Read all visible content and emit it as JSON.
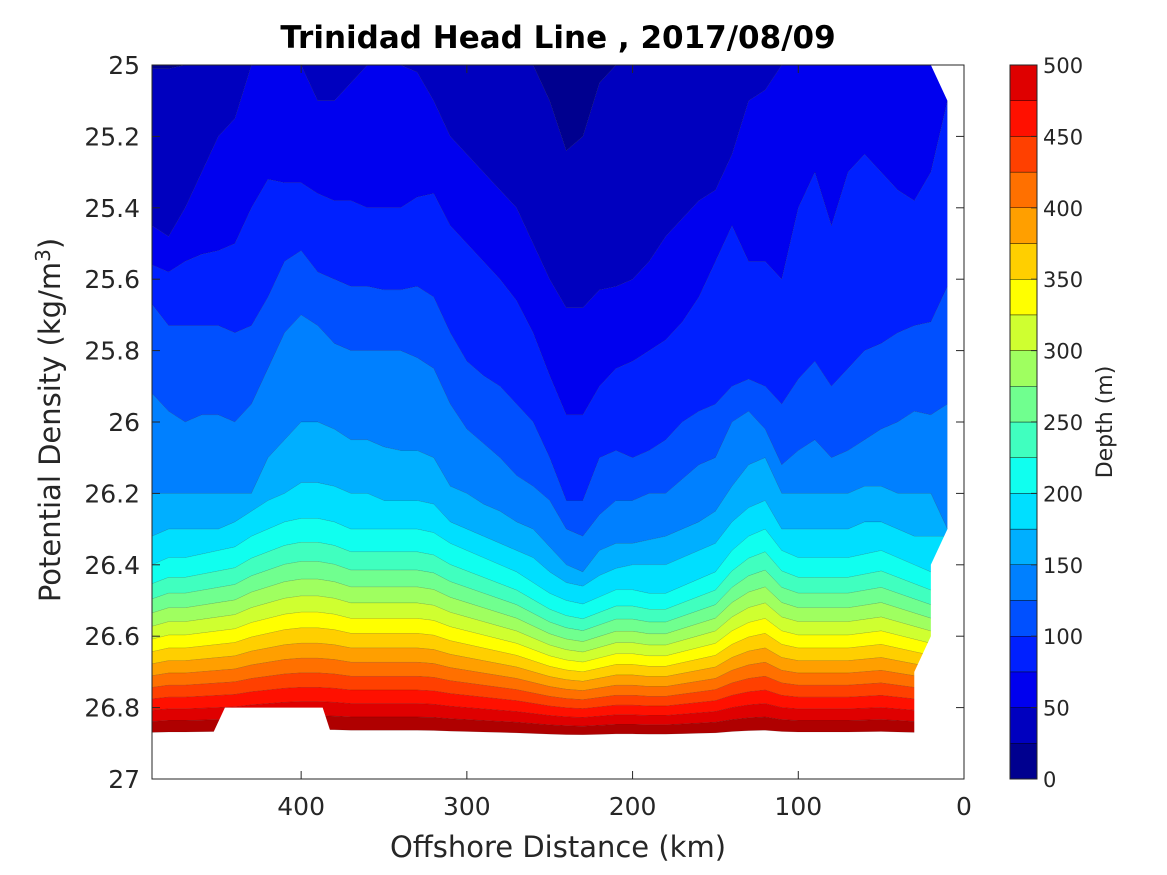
{
  "chart_data": {
    "type": "contour",
    "title": "Trinidad Head Line , 2017/08/09",
    "xlabel": "Offshore Distance (km)",
    "ylabel": "Potential Density (kg/m",
    "ylabel_sup": "3",
    "ylabel_close": ")",
    "xlim": [
      490,
      0
    ],
    "ylim": [
      25,
      27
    ],
    "x_reversed": true,
    "y_reversed": true,
    "x_ticks": [
      "400",
      "300",
      "200",
      "100",
      "0"
    ],
    "y_ticks": [
      "25",
      "25.2",
      "25.4",
      "25.6",
      "25.8",
      "26",
      "26.2",
      "26.4",
      "26.6",
      "26.8",
      "27"
    ],
    "colorbar": {
      "label": "Depth (m)",
      "ticks": [
        "0",
        "50",
        "100",
        "150",
        "200",
        "250",
        "300",
        "350",
        "400",
        "450",
        "500"
      ],
      "levels": [
        0,
        25,
        50,
        75,
        100,
        125,
        150,
        175,
        200,
        225,
        250,
        275,
        300,
        325,
        350,
        375,
        400,
        425,
        450,
        475,
        500
      ],
      "colormap": "jet",
      "colors": [
        "#00008f",
        "#0000bf",
        "#0000ef",
        "#0020ff",
        "#0050ff",
        "#0080ff",
        "#00afff",
        "#00dfff",
        "#10ffef",
        "#40ffbf",
        "#70ff8f",
        "#9fff60",
        "#cfff30",
        "#ffff00",
        "#ffcf00",
        "#ff9f00",
        "#ff7000",
        "#ff4000",
        "#ff1000",
        "#df0000",
        "#af0000"
      ]
    },
    "x": [
      490,
      480,
      470,
      460,
      450,
      440,
      430,
      420,
      410,
      400,
      390,
      380,
      370,
      360,
      350,
      340,
      330,
      320,
      310,
      300,
      290,
      280,
      270,
      260,
      250,
      240,
      230,
      220,
      210,
      200,
      190,
      180,
      170,
      160,
      150,
      140,
      130,
      120,
      110,
      100,
      90,
      80,
      70,
      60,
      50,
      40,
      30,
      20,
      10
    ],
    "isopycnal_depth_contours": [
      {
        "depth": 25,
        "density": [
          25.01,
          25.01,
          25.0,
          25.0,
          25.0,
          25.0,
          25.0,
          25.0,
          25.0,
          25.0,
          25.0,
          25.0,
          25.0,
          25.0,
          25.0,
          25.0,
          25.0,
          25.0,
          25.0,
          25.0,
          25.0,
          25.0,
          25.0,
          25.0,
          25.1,
          25.24,
          25.2,
          25.05,
          25.0,
          25.0,
          25.0,
          25.0,
          25.0,
          25.0,
          25.0,
          25.0,
          25.0,
          25.0,
          25.0,
          25.0,
          25.0,
          25.0,
          25.0,
          25.0,
          25.0,
          25.0,
          25.0,
          25.0,
          25.0
        ]
      },
      {
        "depth": 50,
        "density": [
          25.45,
          25.48,
          25.4,
          25.3,
          25.2,
          25.15,
          25.0,
          25.0,
          25.0,
          25.0,
          25.1,
          25.1,
          25.05,
          25.0,
          25.0,
          25.0,
          25.02,
          25.1,
          25.2,
          25.25,
          25.3,
          25.35,
          25.4,
          25.5,
          25.6,
          25.68,
          25.68,
          25.63,
          25.62,
          25.6,
          25.55,
          25.48,
          25.43,
          25.38,
          25.35,
          25.25,
          25.1,
          25.07,
          25.0,
          25.0,
          25.0,
          25.0,
          25.0,
          25.0,
          25.0,
          25.0,
          25.0,
          25.0,
          25.0
        ]
      },
      {
        "depth": 75,
        "density": [
          25.56,
          25.58,
          25.55,
          25.53,
          25.52,
          25.5,
          25.4,
          25.32,
          25.33,
          25.33,
          25.36,
          25.38,
          25.38,
          25.4,
          25.4,
          25.4,
          25.37,
          25.36,
          25.45,
          25.5,
          25.55,
          25.6,
          25.66,
          25.75,
          25.87,
          25.98,
          25.98,
          25.9,
          25.85,
          25.83,
          25.8,
          25.77,
          25.72,
          25.65,
          25.55,
          25.45,
          25.55,
          25.55,
          25.6,
          25.4,
          25.3,
          25.45,
          25.3,
          25.25,
          25.3,
          25.35,
          25.38,
          25.3,
          25.1
        ]
      },
      {
        "depth": 100,
        "density": [
          25.67,
          25.73,
          25.73,
          25.73,
          25.73,
          25.75,
          25.73,
          25.65,
          25.55,
          25.52,
          25.58,
          25.6,
          25.62,
          25.62,
          25.63,
          25.63,
          25.62,
          25.65,
          25.75,
          25.83,
          25.87,
          25.9,
          25.95,
          26.0,
          26.1,
          26.22,
          26.22,
          26.1,
          26.08,
          26.1,
          26.08,
          26.05,
          26.0,
          25.97,
          25.95,
          25.9,
          25.88,
          25.9,
          25.95,
          25.88,
          25.83,
          25.9,
          25.85,
          25.8,
          25.78,
          25.75,
          25.73,
          25.72,
          25.62
        ]
      },
      {
        "depth": 125,
        "density": [
          25.92,
          25.97,
          26.0,
          25.98,
          25.98,
          26.0,
          25.95,
          25.85,
          25.75,
          25.7,
          25.73,
          25.78,
          25.8,
          25.8,
          25.8,
          25.8,
          25.82,
          25.85,
          25.95,
          26.02,
          26.06,
          26.1,
          26.15,
          26.18,
          26.22,
          26.3,
          26.32,
          26.26,
          26.22,
          26.22,
          26.2,
          26.2,
          26.16,
          26.12,
          26.1,
          26.0,
          25.97,
          26.02,
          26.12,
          26.08,
          26.05,
          26.1,
          26.08,
          26.05,
          26.02,
          26.0,
          25.97,
          25.98,
          25.95
        ]
      },
      {
        "depth": 150,
        "density": [
          26.2,
          26.2,
          26.2,
          26.2,
          26.2,
          26.2,
          26.2,
          26.1,
          26.05,
          26.0,
          26.0,
          26.02,
          26.05,
          26.05,
          26.07,
          26.08,
          26.08,
          26.1,
          26.18,
          26.2,
          26.23,
          26.25,
          26.28,
          26.3,
          26.35,
          26.4,
          26.42,
          26.36,
          26.34,
          26.34,
          26.33,
          26.32,
          26.3,
          26.28,
          26.25,
          26.18,
          26.12,
          26.1,
          26.2,
          26.2,
          26.2,
          26.2,
          26.2,
          26.18,
          26.18,
          26.2,
          26.2,
          26.2,
          26.3
        ]
      },
      {
        "depth": 175,
        "density": [
          26.32,
          26.3,
          26.3,
          26.3,
          26.3,
          26.28,
          26.25,
          26.22,
          26.2,
          26.17,
          26.17,
          26.18,
          26.2,
          26.2,
          26.22,
          26.22,
          26.22,
          26.23,
          26.28,
          26.3,
          26.32,
          26.34,
          26.36,
          26.38,
          26.42,
          26.45,
          26.46,
          26.43,
          26.41,
          26.4,
          26.4,
          26.4,
          26.38,
          26.36,
          26.34,
          26.28,
          26.24,
          26.22,
          26.3,
          26.3,
          26.3,
          26.3,
          26.3,
          26.28,
          26.28,
          26.3,
          26.32,
          26.32,
          26.32
        ]
      },
      {
        "depth": 200,
        "density": [
          26.4,
          26.38,
          26.38,
          26.37,
          26.36,
          26.35,
          26.32,
          26.3,
          26.28,
          26.27,
          26.27,
          26.28,
          26.3,
          26.3,
          26.3,
          26.3,
          26.3,
          26.31,
          26.34,
          26.36,
          26.38,
          26.4,
          26.42,
          26.45,
          26.48,
          26.5,
          26.51,
          26.49,
          26.47,
          26.47,
          26.48,
          26.48,
          26.46,
          26.44,
          26.42,
          26.36,
          26.32,
          26.3,
          26.36,
          26.38,
          26.38,
          26.38,
          26.38,
          26.37,
          26.36,
          26.38,
          26.4,
          26.42,
          26.42
        ]
      }
    ]
  }
}
